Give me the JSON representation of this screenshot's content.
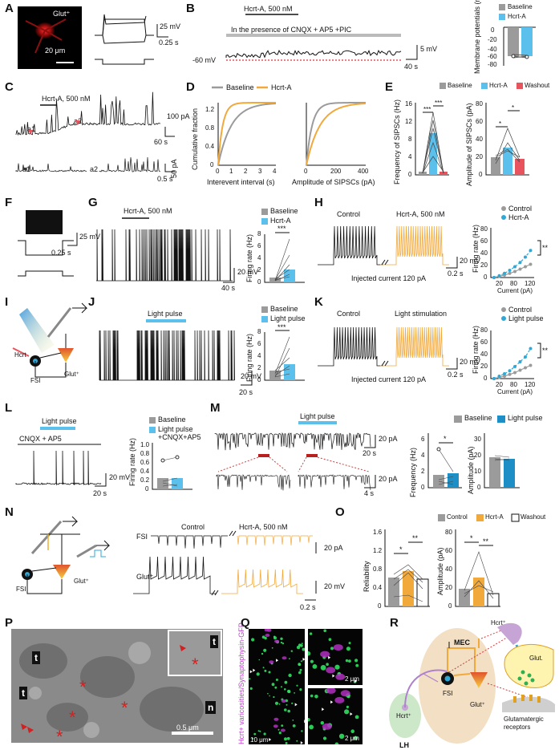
{
  "colors": {
    "baseline": "#9b9b9b",
    "hcrt": "#5bc0eb",
    "washout": "#e8545d",
    "orange": "#f2a93b",
    "control": "#9b9b9b",
    "light": "#2fa8d8",
    "black": "#111111"
  },
  "panels": {
    "A": "A",
    "B": "B",
    "C": "C",
    "D": "D",
    "E": "E",
    "F": "F",
    "G": "G",
    "H": "H",
    "I": "I",
    "J": "J",
    "K": "K",
    "L": "L",
    "M": "M",
    "N": "N",
    "O": "O",
    "P": "P",
    "Q": "Q",
    "R": "R"
  },
  "A": {
    "glut_label": "Glut⁺",
    "scale_um": "20 μm",
    "scale_mv": "25 mV",
    "scale_s": "0.25 s"
  },
  "B": {
    "drug": "Hcrt-A, 500 nM",
    "presence": "In the presence of CNQX + AP5 +PIC",
    "vm": "-60 mV",
    "scale_mv": "5 mV",
    "scale_s": "40 s",
    "legend": [
      "Baseline",
      "Hcrt-A"
    ],
    "ylabel": "Membrane potentials (mV)",
    "yticks": [
      "0",
      "-20",
      "-40",
      "-60",
      "-80"
    ]
  },
  "C": {
    "drug": "Hcrt-A, 500 nM",
    "a1": "a1",
    "a2": "a2",
    "scale_pa": "100 pA",
    "scale_s": "60 s",
    "scale_pa2": "50 pA",
    "scale_s2": "0.5 s"
  },
  "D": {
    "legend": [
      "Baseline",
      "Hcrt-A"
    ],
    "ylabel": "Cumulative fraction",
    "xlabel1": "Interevent interval (s)",
    "xlabel2": "Amplitude of SIPSCs (pA)",
    "yticks": [
      "0",
      "0.4",
      "0.8",
      "1.2"
    ],
    "xticks1": [
      "0",
      "1",
      "2",
      "3",
      "4"
    ],
    "xticks2": [
      "0",
      "200",
      "400"
    ]
  },
  "E": {
    "legend": [
      "Baseline",
      "Hcrt-A",
      "Washout"
    ],
    "ylabel1": "Frequency of SIPSCs (Hz)",
    "ylabel2": "Amplitude of SIPSCs (pA)",
    "yticks1": [
      "0",
      "4",
      "8",
      "12",
      "16"
    ],
    "yticks2": [
      "0",
      "20",
      "40",
      "60",
      "80"
    ],
    "sig": [
      "***",
      "***",
      "*",
      "*"
    ]
  },
  "F": {
    "scale_mv": "25 mV",
    "scale_s": "0.25 s"
  },
  "G": {
    "drug": "Hcrt-A, 500 nM",
    "legend": [
      "Baseline",
      "Hcrt-A"
    ],
    "ylabel": "Firing rate (Hz)",
    "yticks": [
      "0",
      "2",
      "4",
      "6",
      "8"
    ],
    "sig": "***",
    "scale_mv": "20 mV",
    "scale_s": "40 s"
  },
  "H": {
    "control": "Control",
    "drug": "Hcrt-A, 500 nM",
    "injected": "Injected current 120 pA",
    "scale_mv": "20 mV",
    "scale_s": "0.2 s",
    "legend": [
      "Control",
      "Hcrt-A"
    ],
    "ylabel": "Firing rate (Hz)",
    "xlabel": "Current (pA)",
    "yticks": [
      "0",
      "20",
      "40",
      "60",
      "80"
    ],
    "xticks": [
      "20",
      "80",
      "120"
    ],
    "sig": "**"
  },
  "I": {
    "hcrt": "Hcrt",
    "fsi": "FSI",
    "glut": "Glut⁺"
  },
  "J": {
    "light": "Light pulse",
    "legend": [
      "Baseline",
      "Light pulse"
    ],
    "ylabel": "Firing rate (Hz)",
    "yticks": [
      "0",
      "2",
      "4",
      "6",
      "8"
    ],
    "sig": "***",
    "scale_mv": "20 mV",
    "scale_s": "20 s"
  },
  "K": {
    "control": "Control",
    "stim": "Light stimulation",
    "injected": "Injected current 120 pA",
    "scale_mv": "20 mV",
    "scale_s": "0.2 s",
    "legend": [
      "Control",
      "Light pulse"
    ],
    "ylabel": "Firing rate (Hz)",
    "xlabel": "Current (pA)",
    "yticks": [
      "0",
      "20",
      "40",
      "60",
      "80"
    ],
    "xticks": [
      "20",
      "80",
      "120"
    ],
    "sig": "**"
  },
  "L": {
    "light": "Light pulse",
    "cnqx": "CNQX + AP5",
    "legend": [
      "Baseline",
      "Light pulse +CNQX+AP5"
    ],
    "ylabel": "Firing rate (Hz)",
    "yticks": [
      "0",
      "0.2",
      "0.4",
      "0.6",
      "0.8",
      "1.0"
    ],
    "scale_mv": "20 mV",
    "scale_s": "20 s"
  },
  "M": {
    "light": "Light pulse",
    "legend": [
      "Baseline",
      "Light pulse"
    ],
    "scale_pa": "20 pA",
    "scale_s": "20 s",
    "scale_pa2": "20 pA",
    "scale_s2": "4 s",
    "ylabel1": "Frequency (Hz)",
    "ylabel2": "Amplitude (pA)",
    "yticks1": [
      "0",
      "2",
      "4",
      "6"
    ],
    "yticks2": [
      "0",
      "10",
      "20",
      "30"
    ],
    "sig": "*"
  },
  "N": {
    "fsi": "FSI",
    "glut": "Glut⁺",
    "control": "Control",
    "drug": "Hcrt-A, 500 nM",
    "scale_pa": "20 pA",
    "scale_mv": "20 mV",
    "scale_s": "0.2 s"
  },
  "O": {
    "legend": [
      "Control",
      "Hcrt-A",
      "Washout"
    ],
    "ylabel1": "Reliability",
    "ylabel2": "Amplitude (pA)",
    "yticks1": [
      "0",
      "0.4",
      "0.8",
      "1.2",
      "1.6"
    ],
    "yticks2": [
      "0",
      "20",
      "40",
      "60",
      "80"
    ],
    "sig": [
      "*",
      "**",
      "*",
      "**"
    ]
  },
  "P": {
    "t": "t",
    "n": "n",
    "scale": "0.5 μm"
  },
  "Q": {
    "ylabel": "Hcrt+ varicosities/Synaptophysin-GFP",
    "scale1": "10 μm",
    "scale2": "2 μm",
    "scale3": "2 μm"
  },
  "R": {
    "mec": "MEC",
    "lh": "LH",
    "hcrt_neuron": "Hcrt⁺",
    "fsi": "FSI",
    "glut": "Glut⁺",
    "hcrt_top": "Hcrt⁺",
    "glut_vesicle": "Glut.",
    "receptors": "Glutamatergic receptors"
  }
}
